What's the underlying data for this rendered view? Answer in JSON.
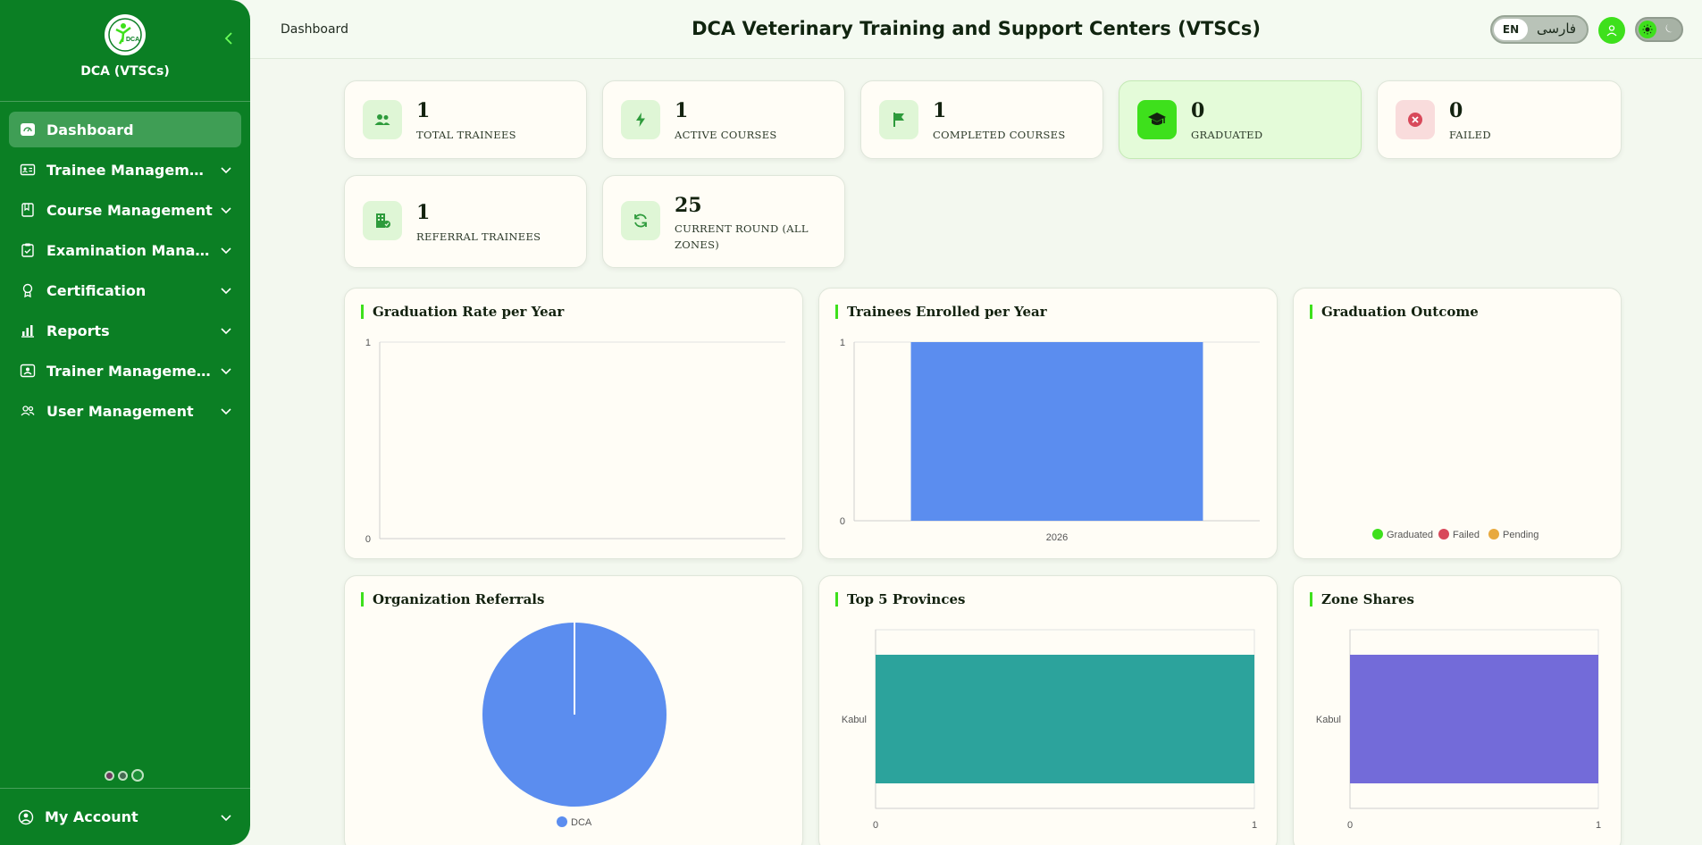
{
  "sidebar": {
    "brand": "DCA (VTSCs)",
    "logo_text": "DCA",
    "items": [
      {
        "label": "Dashboard",
        "icon": "dashboard-icon",
        "active": true
      },
      {
        "label": "Trainee Management",
        "icon": "id-card-icon"
      },
      {
        "label": "Course Management",
        "icon": "book-icon"
      },
      {
        "label": "Examination Manag...",
        "icon": "clipboard-check-icon"
      },
      {
        "label": "Certification",
        "icon": "award-icon"
      },
      {
        "label": "Reports",
        "icon": "bar-chart-icon"
      },
      {
        "label": "Trainer Management",
        "icon": "trainer-icon"
      },
      {
        "label": "User Management",
        "icon": "users-icon"
      }
    ],
    "account_label": "My Account"
  },
  "header": {
    "breadcrumb": "Dashboard",
    "title": "DCA Veterinary Training and Support Centers (VTSCs)",
    "lang_en": "EN",
    "lang_fa": "فارسی"
  },
  "stats": [
    {
      "value": "1",
      "label": "TOTAL TRAINEES",
      "icon": "users-icon"
    },
    {
      "value": "1",
      "label": "ACTIVE COURSES",
      "icon": "lightning-icon"
    },
    {
      "value": "1",
      "label": "COMPLETED COURSES",
      "icon": "flag-icon"
    },
    {
      "value": "0",
      "label": "GRADUATED",
      "icon": "graduation-cap-icon"
    },
    {
      "value": "0",
      "label": "FAILED",
      "icon": "x-circle-icon"
    },
    {
      "value": "1",
      "label": "REFERRAL TRAINEES",
      "icon": "building-check-icon"
    },
    {
      "value": "25",
      "label": "CURRENT ROUND (ALL ZONES)",
      "icon": "refresh-icon"
    }
  ],
  "colors": {
    "sidebar": "#0b7f24",
    "accent": "#3ee01c",
    "bar_blue": "#5b8def",
    "teal": "#2ca39c",
    "purple": "#736bd9",
    "graduated": "#3ee01c",
    "failed": "#d8495a",
    "pending": "#e8a93e"
  },
  "chart_data": [
    {
      "type": "line",
      "title": "Graduation Rate per Year",
      "x": [],
      "series": [],
      "ylim": [
        0,
        1
      ],
      "yticks": [
        "0",
        "1"
      ],
      "grid": true
    },
    {
      "type": "bar",
      "title": "Trainees Enrolled per Year",
      "categories": [
        "2026"
      ],
      "values": [
        1
      ],
      "ylim": [
        0,
        1
      ],
      "yticks": [
        "0",
        "1"
      ],
      "color": "#5b8def"
    },
    {
      "type": "pie",
      "title": "Graduation Outcome",
      "categories": [
        "Graduated",
        "Failed",
        "Pending"
      ],
      "values": [
        0,
        0,
        0
      ],
      "legend": "bottom"
    },
    {
      "type": "pie",
      "title": "Organization Referrals",
      "categories": [
        "DCA"
      ],
      "values": [
        1
      ],
      "legend": "bottom"
    },
    {
      "type": "bar",
      "orientation": "horizontal",
      "title": "Top 5 Provinces",
      "categories": [
        "Kabul"
      ],
      "values": [
        1
      ],
      "xlim": [
        0,
        1
      ],
      "xticks": [
        "0",
        "1"
      ],
      "color": "#2ca39c"
    },
    {
      "type": "bar",
      "orientation": "horizontal",
      "title": "Zone Shares",
      "categories": [
        "Kabul"
      ],
      "values": [
        1
      ],
      "xlim": [
        0,
        1
      ],
      "xticks": [
        "0",
        "1"
      ],
      "color": "#736bd9"
    }
  ]
}
